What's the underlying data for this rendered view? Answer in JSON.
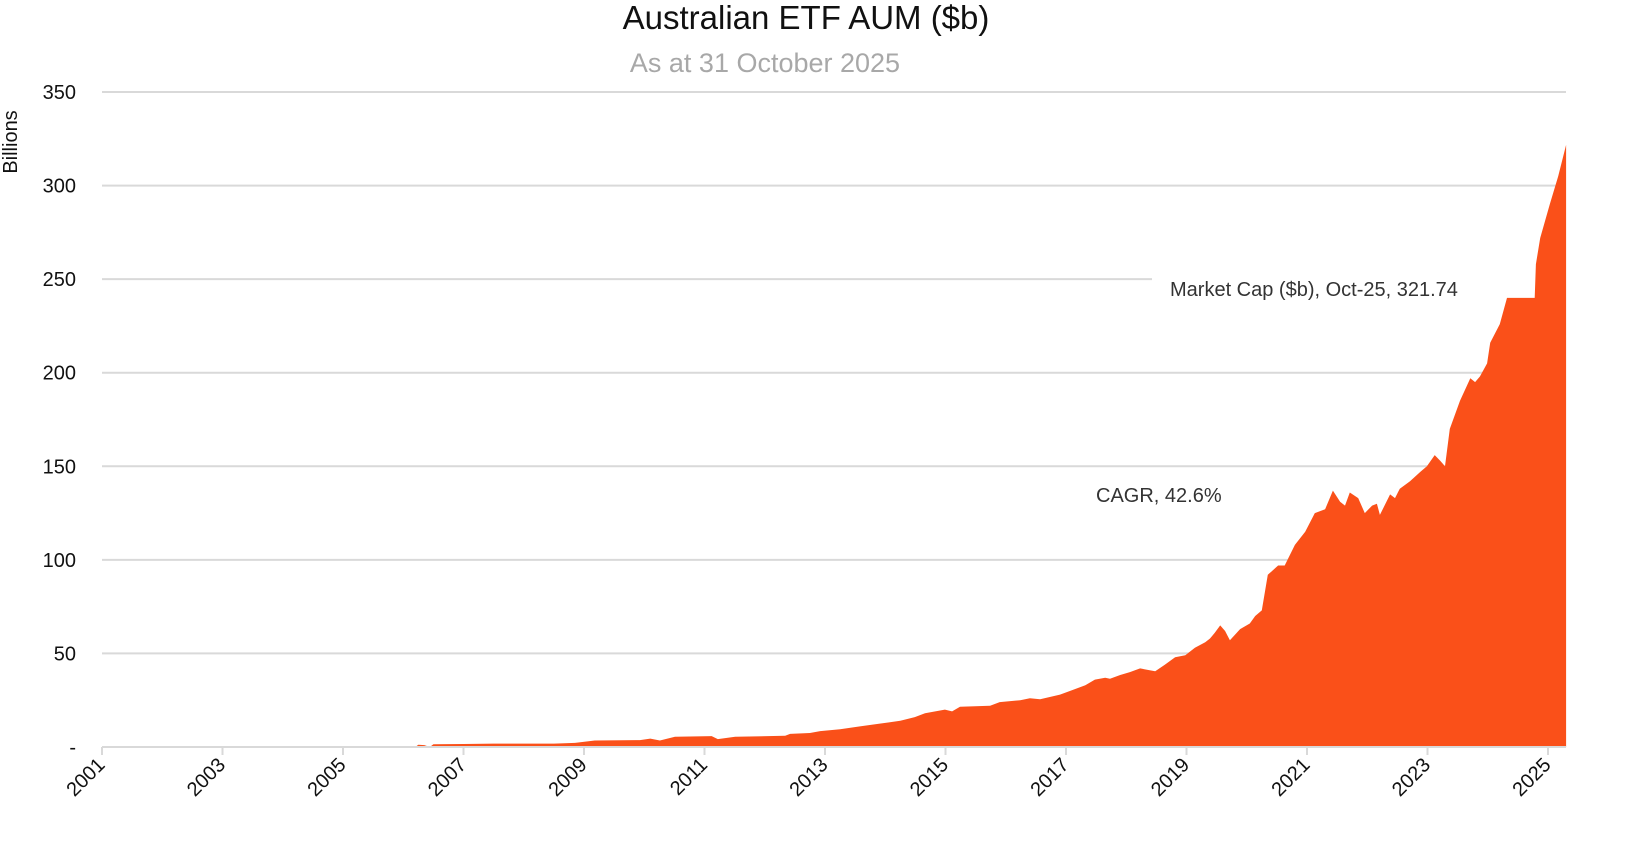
{
  "chart_data": {
    "type": "area",
    "title": "Australian ETF AUM ($b)",
    "subtitle": "As at 31 October 2025",
    "ylabel": "Billions",
    "xlabel": "",
    "ylim": [
      0,
      350
    ],
    "yticks": [
      0,
      50,
      100,
      150,
      200,
      250,
      300,
      350
    ],
    "ytick_labels": [
      "-",
      "50",
      "100",
      "150",
      "200",
      "250",
      "300",
      "350"
    ],
    "xtick_labels": [
      "2001",
      "2003",
      "2005",
      "2007",
      "2009",
      "2011",
      "2013",
      "2015",
      "2017",
      "2019",
      "2021",
      "2023",
      "2025"
    ],
    "grid": true,
    "color": "#FA5019",
    "series": [
      {
        "name": "Market Cap ($b)",
        "points": [
          [
            2006.7,
            0
          ],
          [
            2006.75,
            1.2
          ],
          [
            2006.85,
            1.0
          ],
          [
            2006.94,
            0
          ],
          [
            2007.0,
            1.5
          ],
          [
            2007.5,
            1.6
          ],
          [
            2008.0,
            1.8
          ],
          [
            2008.5,
            1.8
          ],
          [
            2009.0,
            1.8
          ],
          [
            2009.35,
            2.2
          ],
          [
            2009.68,
            3.5
          ],
          [
            2010.43,
            3.7
          ],
          [
            2010.6,
            4.5
          ],
          [
            2010.76,
            3.5
          ],
          [
            2011.01,
            5.5
          ],
          [
            2011.62,
            5.8
          ],
          [
            2011.72,
            4.2
          ],
          [
            2012.01,
            5.5
          ],
          [
            2012.84,
            6.0
          ],
          [
            2012.92,
            7.0
          ],
          [
            2013.25,
            7.5
          ],
          [
            2013.42,
            8.5
          ],
          [
            2013.75,
            9.5
          ],
          [
            2014.08,
            11
          ],
          [
            2014.41,
            12.5
          ],
          [
            2014.75,
            14
          ],
          [
            2014.99,
            16
          ],
          [
            2015.16,
            18
          ],
          [
            2015.49,
            20
          ],
          [
            2015.61,
            19
          ],
          [
            2015.74,
            21.5
          ],
          [
            2016.24,
            22
          ],
          [
            2016.4,
            24
          ],
          [
            2016.74,
            25
          ],
          [
            2016.9,
            26
          ],
          [
            2017.07,
            25.5
          ],
          [
            2017.4,
            28
          ],
          [
            2017.57,
            30
          ],
          [
            2017.82,
            33
          ],
          [
            2017.98,
            36
          ],
          [
            2018.15,
            37
          ],
          [
            2018.23,
            36.5
          ],
          [
            2018.4,
            38.5
          ],
          [
            2018.56,
            40
          ],
          [
            2018.73,
            42
          ],
          [
            2018.89,
            41
          ],
          [
            2018.98,
            40.5
          ],
          [
            2019.14,
            44
          ],
          [
            2019.31,
            48
          ],
          [
            2019.48,
            49
          ],
          [
            2019.64,
            53
          ],
          [
            2019.81,
            56
          ],
          [
            2019.89,
            58
          ],
          [
            2019.97,
            61
          ],
          [
            2020.06,
            65
          ],
          [
            2020.14,
            62
          ],
          [
            2020.22,
            57
          ],
          [
            2020.39,
            63
          ],
          [
            2020.55,
            66
          ],
          [
            2020.64,
            70
          ],
          [
            2020.75,
            73
          ],
          [
            2020.85,
            92
          ],
          [
            2021.02,
            97
          ],
          [
            2021.13,
            97
          ],
          [
            2021.3,
            108
          ],
          [
            2021.47,
            115
          ],
          [
            2021.63,
            125
          ],
          [
            2021.8,
            127
          ],
          [
            2021.93,
            137
          ],
          [
            2022.05,
            131
          ],
          [
            2022.13,
            129
          ],
          [
            2022.21,
            136
          ],
          [
            2022.35,
            133
          ],
          [
            2022.46,
            125
          ],
          [
            2022.58,
            129
          ],
          [
            2022.66,
            130
          ],
          [
            2022.71,
            124
          ],
          [
            2022.88,
            135
          ],
          [
            2022.96,
            133
          ],
          [
            2023.04,
            138
          ],
          [
            2023.21,
            142
          ],
          [
            2023.38,
            147
          ],
          [
            2023.49,
            150
          ],
          [
            2023.62,
            156
          ],
          [
            2023.71,
            153
          ],
          [
            2023.79,
            150
          ],
          [
            2023.87,
            170
          ],
          [
            2024.04,
            185
          ],
          [
            2024.21,
            197
          ],
          [
            2024.29,
            195
          ],
          [
            2024.37,
            198
          ],
          [
            2024.49,
            205
          ],
          [
            2024.54,
            216
          ],
          [
            2024.7,
            226
          ],
          [
            2024.82,
            240
          ],
          [
            2025.28,
            240
          ],
          [
            2025.3,
            258
          ],
          [
            2025.37,
            272
          ],
          [
            2025.53,
            290
          ],
          [
            2025.67,
            305
          ],
          [
            2025.8,
            321.74
          ]
        ]
      }
    ],
    "annotations": {
      "last_point": "Market Cap ($b), Oct-25, 321.74",
      "cagr": "CAGR, 42.6%"
    }
  }
}
